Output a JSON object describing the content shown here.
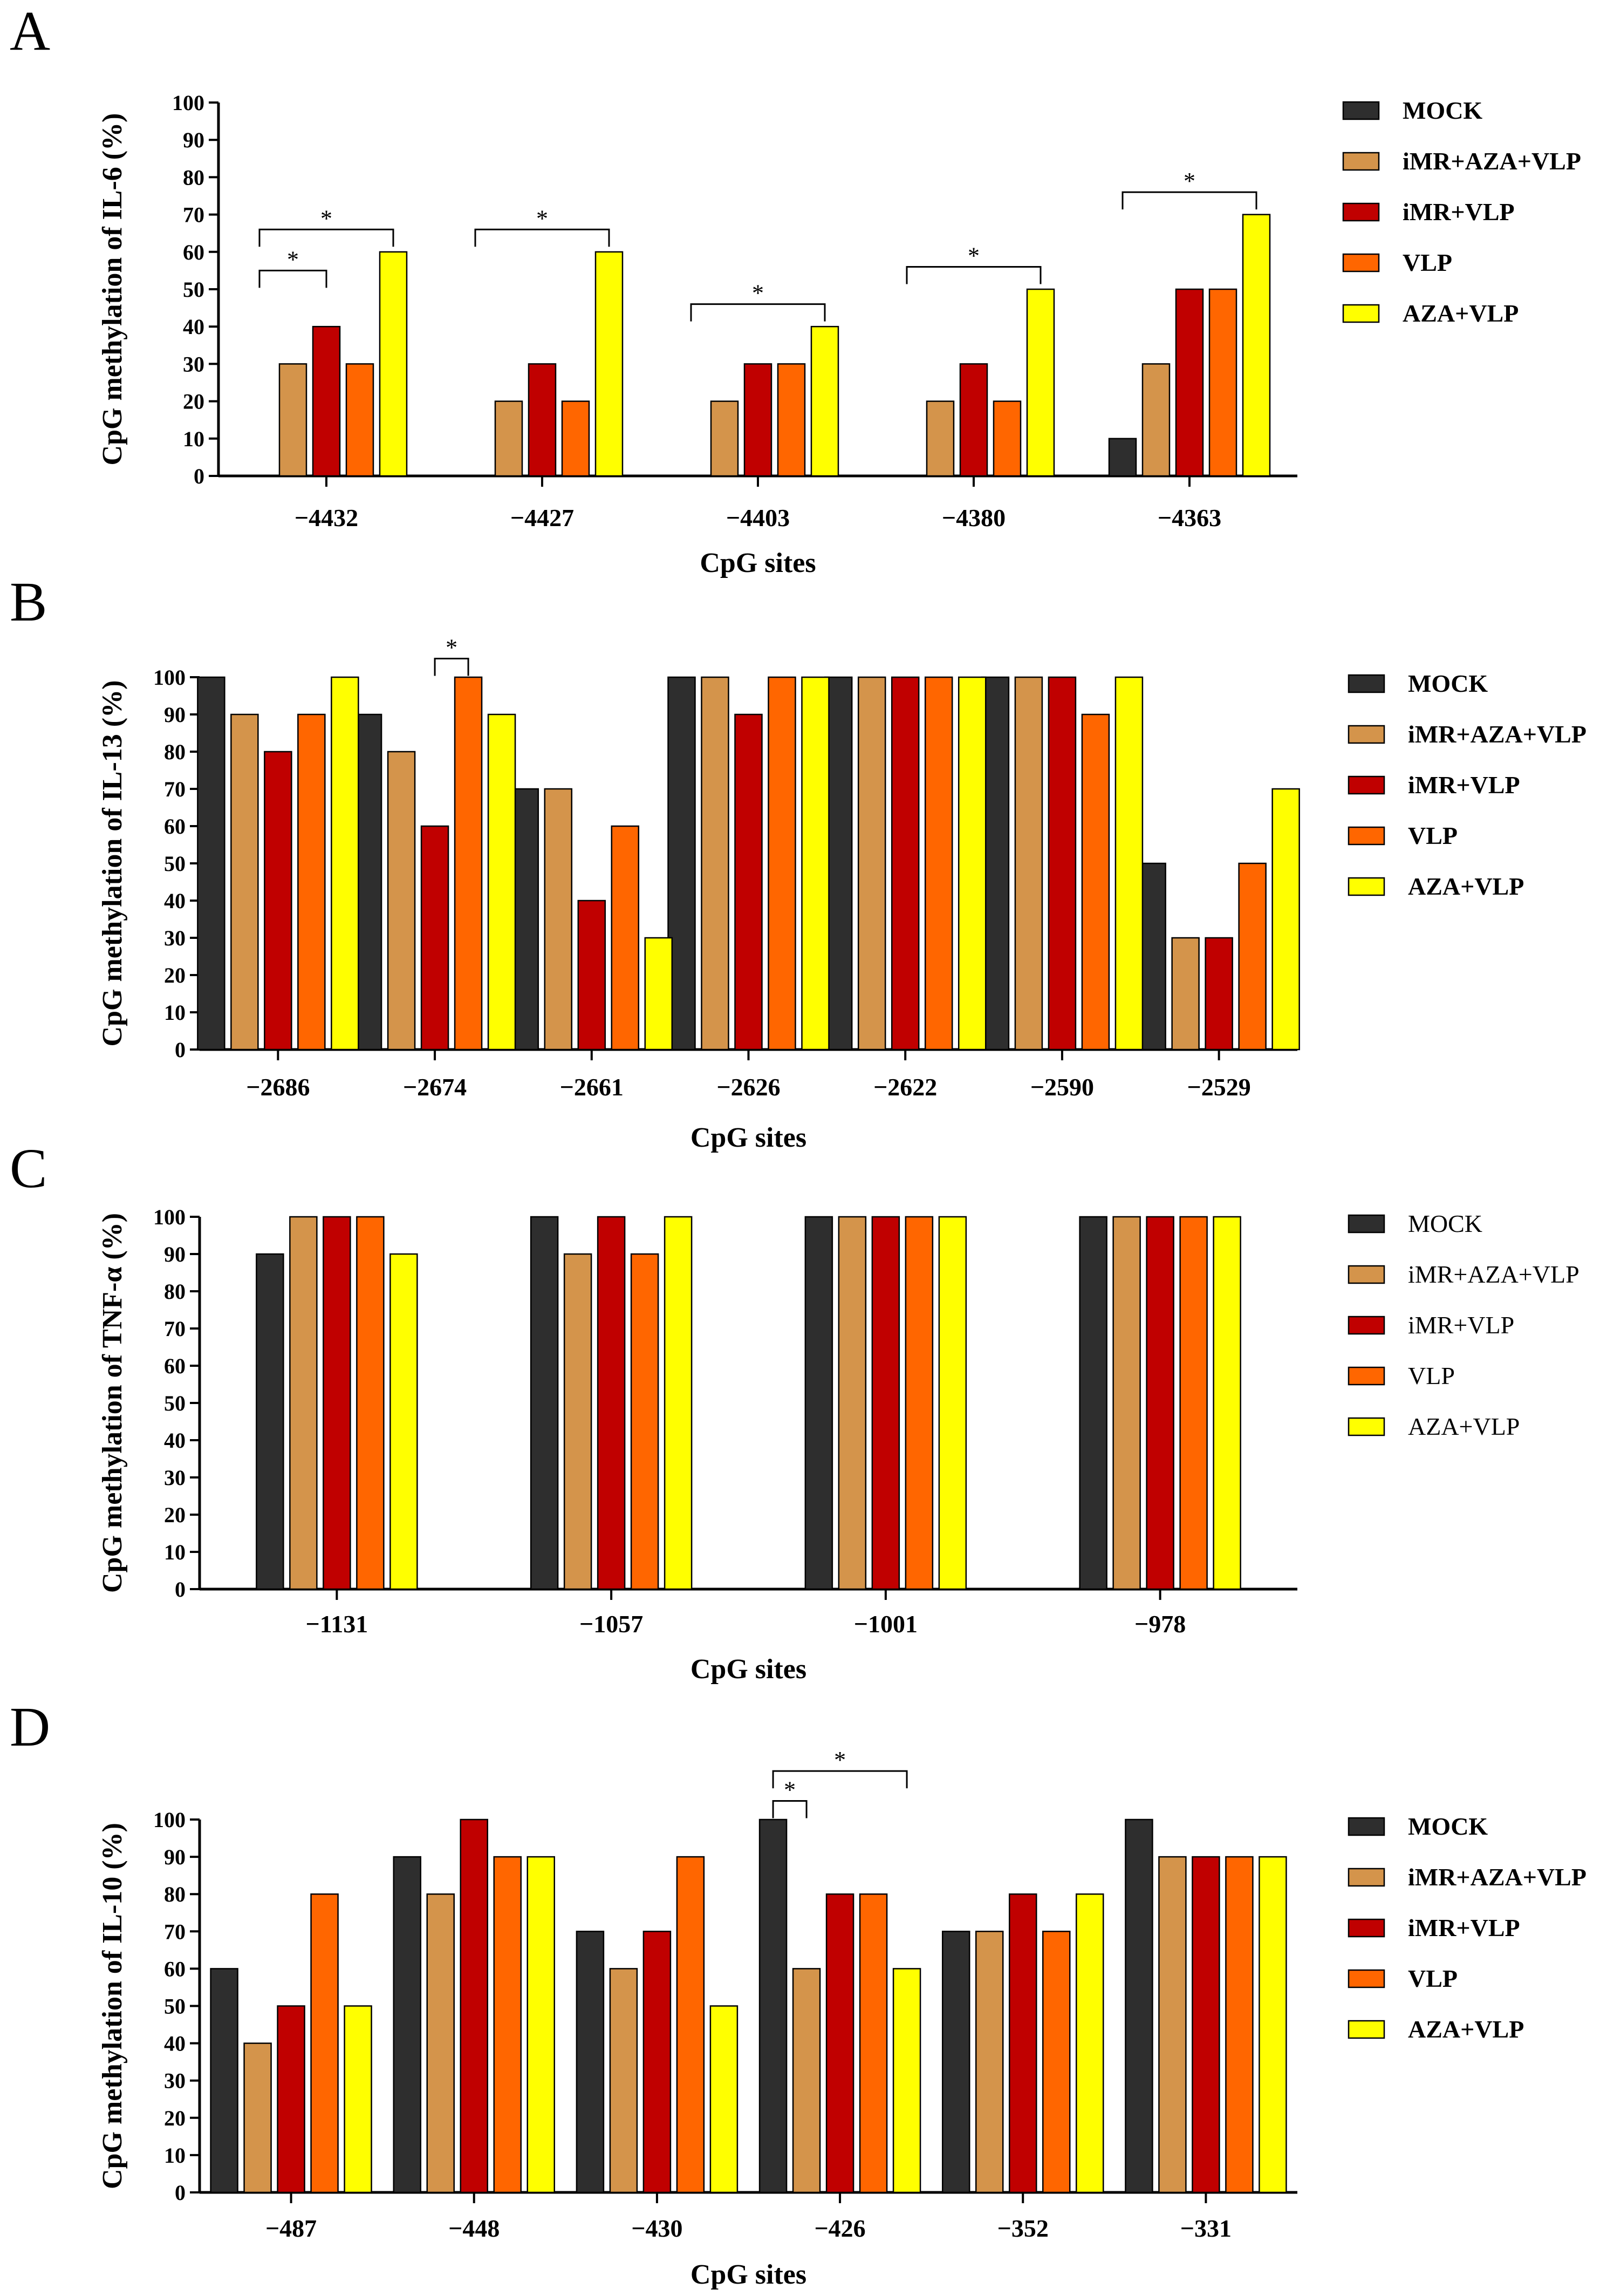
{
  "series": [
    "MOCK",
    "iMR+AZA+VLP",
    "iMR+VLP",
    "VLP",
    "AZA+VLP"
  ],
  "colors": [
    "#2e2e2e",
    "#d4944b",
    "#c00000",
    "#ff6600",
    "#ffff00"
  ],
  "chart_data": [
    {
      "panel": "A",
      "type": "bar",
      "ylabel": "CpG methylation of  IL-6  (%)",
      "xlabel": "CpG sites",
      "ylim": [
        0,
        100
      ],
      "yticks": [
        0,
        10,
        20,
        30,
        40,
        50,
        60,
        70,
        80,
        90,
        100
      ],
      "categories": [
        "−4432",
        "−4427",
        "−4403",
        "−4380",
        "−4363"
      ],
      "series": [
        {
          "name": "MOCK",
          "values": [
            0,
            0,
            0,
            0,
            10
          ]
        },
        {
          "name": "iMR+AZA+VLP",
          "values": [
            30,
            20,
            20,
            20,
            30
          ]
        },
        {
          "name": "iMR+VLP",
          "values": [
            40,
            30,
            30,
            30,
            50
          ]
        },
        {
          "name": "VLP",
          "values": [
            30,
            20,
            30,
            20,
            50
          ]
        },
        {
          "name": "AZA+VLP",
          "values": [
            60,
            60,
            40,
            50,
            70
          ]
        }
      ],
      "significance": [
        {
          "label": "*",
          "category": 0,
          "from": 0,
          "to": 2,
          "level": 55
        },
        {
          "label": "*",
          "category": 0,
          "from": 0,
          "to": 4,
          "level": 66
        },
        {
          "label": "*",
          "category": 1,
          "from": 0,
          "to": 4,
          "level": 66
        },
        {
          "label": "*",
          "category": 2,
          "from": 0,
          "to": 4,
          "level": 46
        },
        {
          "label": "*",
          "category": 3,
          "from": 0,
          "to": 4,
          "level": 56
        },
        {
          "label": "*",
          "category": 4,
          "from": 0,
          "to": 4,
          "level": 76
        }
      ],
      "legend_bold": true
    },
    {
      "panel": "B",
      "type": "bar",
      "ylabel": "CpG methylation of  IL-13 (%)",
      "xlabel": "CpG sites",
      "ylim": [
        0,
        100
      ],
      "yticks": [
        0,
        10,
        20,
        30,
        40,
        50,
        60,
        70,
        80,
        90,
        100
      ],
      "categories": [
        "−2686",
        "−2674",
        "−2661",
        "−2626",
        "−2622",
        "−2590",
        "−2529"
      ],
      "series": [
        {
          "name": "MOCK",
          "values": [
            100,
            90,
            70,
            100,
            100,
            100,
            50
          ]
        },
        {
          "name": "iMR+AZA+VLP",
          "values": [
            90,
            80,
            70,
            100,
            100,
            100,
            30
          ]
        },
        {
          "name": "iMR+VLP",
          "values": [
            80,
            60,
            40,
            90,
            100,
            100,
            30
          ]
        },
        {
          "name": "VLP",
          "values": [
            90,
            100,
            60,
            100,
            100,
            90,
            50
          ]
        },
        {
          "name": "AZA+VLP",
          "values": [
            100,
            90,
            30,
            100,
            100,
            100,
            70
          ]
        }
      ],
      "significance": [
        {
          "label": "*",
          "category": 1,
          "from": 2,
          "to": 3,
          "level": 105
        }
      ],
      "legend_bold": true
    },
    {
      "panel": "C",
      "type": "bar",
      "ylabel": "CpG methylation of  TNF-α  (%)",
      "xlabel": "CpG sites",
      "ylim": [
        0,
        100
      ],
      "yticks": [
        0,
        10,
        20,
        30,
        40,
        50,
        60,
        70,
        80,
        90,
        100
      ],
      "categories": [
        "−1131",
        "−1057",
        "−1001",
        "−978"
      ],
      "series": [
        {
          "name": "MOCK",
          "values": [
            90,
            100,
            100,
            100
          ]
        },
        {
          "name": "iMR+AZA+VLP",
          "values": [
            100,
            90,
            100,
            100
          ]
        },
        {
          "name": "iMR+VLP",
          "values": [
            100,
            100,
            100,
            100
          ]
        },
        {
          "name": "VLP",
          "values": [
            100,
            90,
            100,
            100
          ]
        },
        {
          "name": "AZA+VLP",
          "values": [
            90,
            100,
            100,
            100
          ]
        }
      ],
      "significance": [],
      "legend_bold": false
    },
    {
      "panel": "D",
      "type": "bar",
      "ylabel": "CpG methylation of  IL-10  (%)",
      "xlabel": "CpG sites",
      "ylim": [
        0,
        100
      ],
      "yticks": [
        0,
        10,
        20,
        30,
        40,
        50,
        60,
        70,
        80,
        90,
        100
      ],
      "categories": [
        "−487",
        "−448",
        "−430",
        "−426",
        "−352",
        "−331"
      ],
      "series": [
        {
          "name": "MOCK",
          "values": [
            60,
            90,
            70,
            100,
            70,
            100
          ]
        },
        {
          "name": "iMR+AZA+VLP",
          "values": [
            40,
            80,
            60,
            60,
            70,
            90
          ]
        },
        {
          "name": "iMR+VLP",
          "values": [
            50,
            100,
            70,
            80,
            80,
            90
          ]
        },
        {
          "name": "VLP",
          "values": [
            80,
            90,
            90,
            80,
            70,
            90
          ]
        },
        {
          "name": "AZA+VLP",
          "values": [
            50,
            90,
            50,
            60,
            80,
            90
          ]
        }
      ],
      "significance": [
        {
          "label": "*",
          "category": 3,
          "from": 0,
          "to": 1,
          "level": 105
        },
        {
          "label": "*",
          "category": 3,
          "from": 0,
          "to": 4,
          "level": 113
        }
      ],
      "legend_bold": true
    }
  ]
}
